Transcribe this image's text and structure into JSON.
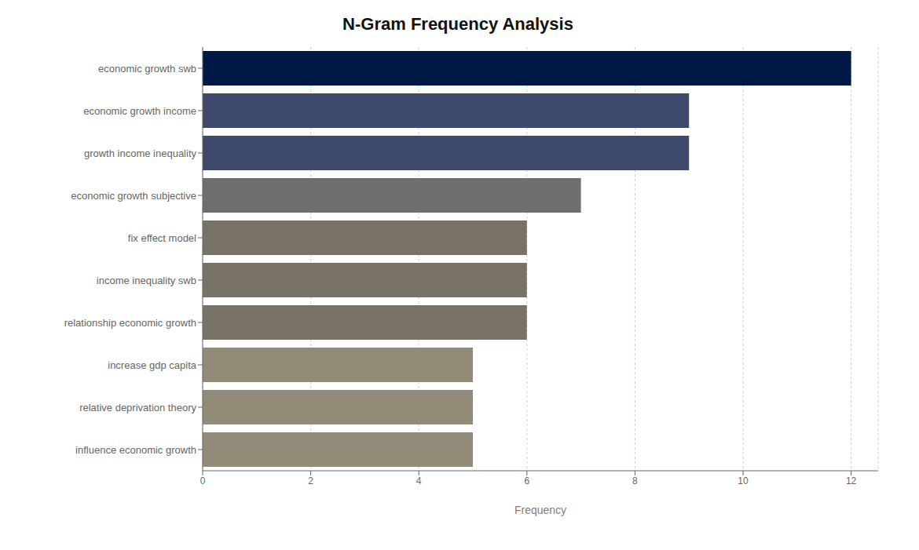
{
  "chart_data": {
    "type": "bar",
    "title": "N-Gram Frequency Analysis",
    "orientation": "horizontal",
    "categories": [
      "influence economic growth",
      "relative deprivation theory",
      "increase gdp capita",
      "relationship economic growth",
      "income inequality swb",
      "fix effect model",
      "economic growth subjective",
      "growth income inequality",
      "economic growth income",
      "economic growth swb"
    ],
    "values": [
      5,
      5,
      5,
      6,
      6,
      6,
      7,
      9,
      9,
      12
    ],
    "colors": [
      "#918b77",
      "#918b77",
      "#918b77",
      "#787165",
      "#787165",
      "#787165",
      "#6e6e6e",
      "#3d4a6b",
      "#3d4a6b",
      "#001845"
    ],
    "xlabel": "Frequency",
    "xlim": [
      0,
      12.5
    ],
    "xticks": [
      0,
      2,
      4,
      6,
      8,
      10,
      12
    ],
    "grid": true
  }
}
